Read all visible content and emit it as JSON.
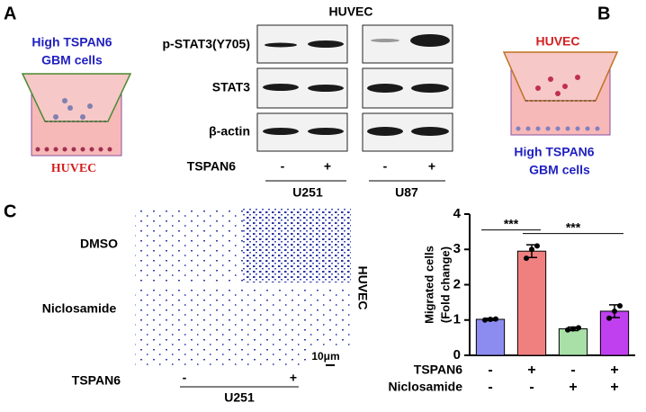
{
  "panel_labels": [
    "A",
    "B",
    "C"
  ],
  "panel_a": {
    "cells_label": [
      "High TSPAN6",
      "GBM cells"
    ],
    "bottom_label": "HUVEC"
  },
  "blot": {
    "title": "HUVEC",
    "rows": [
      "p-STAT3(Y705)",
      "STAT3",
      "β-actin"
    ],
    "condition_label": "TSPAN6",
    "conditions": [
      "-",
      "+",
      "-",
      "+"
    ],
    "cell_lines": [
      "U251",
      "U87"
    ]
  },
  "panel_b": {
    "top_label": "HUVEC",
    "cells_label": [
      "High TSPAN6",
      "GBM cells"
    ]
  },
  "migration": {
    "rows": [
      "DMSO",
      "Niclosamide"
    ],
    "side_label": "HUVEC",
    "scale_bar": "10μm",
    "condition_label": "TSPAN6",
    "conditions": [
      "-",
      "+"
    ],
    "cell_line": "U251"
  },
  "chart_data": {
    "type": "bar",
    "y_label": [
      "Migrated cells",
      "(Fold change)"
    ],
    "values": [
      1.02,
      2.95,
      0.75,
      1.25
    ],
    "errors": [
      0.03,
      0.18,
      0.05,
      0.18
    ],
    "points": [
      [
        1.0,
        1.02,
        1.03
      ],
      [
        2.75,
        3.0,
        3.1
      ],
      [
        0.72,
        0.75,
        0.78
      ],
      [
        1.05,
        1.25,
        1.4
      ]
    ],
    "colors": [
      "#8c8cf0",
      "#f08080",
      "#a8e0a8",
      "#c040f0"
    ],
    "ylim": [
      0,
      4
    ],
    "yticks": [
      0,
      1,
      2,
      3,
      4
    ],
    "significance": [
      {
        "from": 0,
        "to": 1,
        "label": "***"
      },
      {
        "from": 1,
        "to": 3,
        "label": "***"
      }
    ],
    "conditions": [
      {
        "name": "TSPAN6",
        "values": [
          "-",
          "+",
          "-",
          "+"
        ]
      },
      {
        "name": "Niclosamide",
        "values": [
          "-",
          "-",
          "+",
          "+"
        ]
      }
    ]
  }
}
